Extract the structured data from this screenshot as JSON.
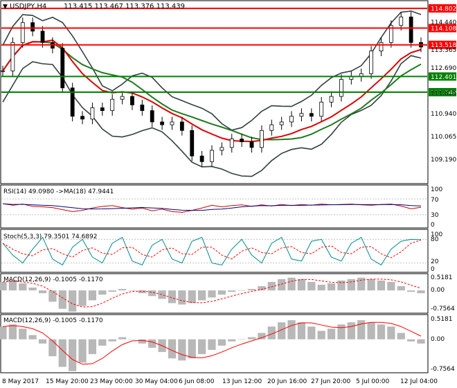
{
  "main_panel": {
    "header": {
      "symbol": "USDJPY,H4",
      "ohlc": "113.415 113.467 113.376 113.439"
    },
    "price_scale": [
      "114.440",
      "113.365",
      "112.690",
      "111.815",
      "110.940",
      "110.065",
      "109.190"
    ],
    "level_tags": [
      {
        "label": "114.802",
        "value": 114.802,
        "color": "#ff0000"
      },
      {
        "label": "114.108",
        "value": 114.108,
        "color": "#ff0000"
      },
      {
        "label": "113.518",
        "value": 113.518,
        "color": "#ff0000"
      },
      {
        "label": "112.401",
        "value": 112.401,
        "color": "#008000"
      },
      {
        "label": "111.849",
        "value": 111.849,
        "color": "#008000"
      }
    ],
    "close_prices": [
      112.6,
      113.6,
      114.3,
      114.0,
      113.6,
      113.4,
      112.0,
      111.0,
      110.9,
      111.3,
      111.2,
      111.6,
      111.7,
      111.4,
      111.2,
      110.8,
      110.7,
      110.8,
      110.5,
      109.6,
      109.4,
      109.8,
      109.9,
      110.2,
      110.1,
      109.9,
      110.5,
      110.7,
      110.8,
      111.0,
      111.1,
      111.0,
      111.5,
      111.7,
      112.3,
      112.4,
      112.5,
      113.3,
      113.6,
      114.2,
      114.5,
      113.6,
      113.44
    ],
    "colors": {
      "resistance": "#ff0000",
      "support": "#008000",
      "ma_fast": "#e00000",
      "ma_slow": "#1f7a1f",
      "bands": "#2f3f3f",
      "candle": "#000000"
    }
  },
  "rsi_panel": {
    "label": "RSI(14) 49.0980 ->MA(18) 47.9441",
    "scale": [
      "100",
      "70",
      "30",
      "0"
    ],
    "values": [
      58,
      54,
      57,
      51,
      50,
      48,
      43,
      38,
      41,
      47,
      51,
      53,
      48,
      44,
      47,
      40,
      44,
      38,
      36,
      41,
      47,
      54,
      50,
      53,
      55,
      51,
      55,
      52,
      56,
      53,
      56,
      54,
      57,
      55,
      56,
      57,
      55,
      54,
      56,
      57,
      52,
      45,
      49
    ]
  },
  "stoch_panel": {
    "label": "Stoch(5,3,3) 79.3501 74.6892",
    "scale": [
      "100",
      "80",
      "20",
      "0"
    ],
    "values": [
      70,
      40,
      20,
      55,
      85,
      30,
      15,
      60,
      80,
      35,
      20,
      70,
      85,
      25,
      15,
      65,
      80,
      30,
      20,
      75,
      85,
      20,
      15,
      55,
      80,
      40,
      20,
      70,
      85,
      30,
      25,
      75,
      80,
      35,
      25,
      70,
      85,
      30,
      15,
      55,
      75,
      80,
      79
    ]
  },
  "macd_panel": {
    "label": "MACD(12,26,9) -0.1005 -0.1170",
    "scale": [
      "0.5181",
      "0.00",
      "-0.7564"
    ],
    "histogram": [
      0.3,
      0.35,
      0.25,
      0.1,
      -0.1,
      -0.4,
      -0.65,
      -0.75,
      -0.55,
      -0.35,
      -0.15,
      -0.05,
      0.05,
      0.0,
      -0.1,
      -0.2,
      -0.3,
      -0.45,
      -0.5,
      -0.45,
      -0.35,
      -0.25,
      -0.15,
      -0.05,
      0.0,
      0.05,
      0.15,
      0.3,
      0.4,
      0.45,
      0.4,
      0.3,
      0.2,
      0.25,
      0.35,
      0.4,
      0.45,
      0.4,
      0.35,
      0.3,
      0.15,
      -0.05,
      -0.1
    ]
  },
  "macd2_panel": {
    "label": "MACD(12,26,9) -0.1005 -0.1170",
    "scale": [
      "0.5181",
      "0.00",
      "-0.7564"
    ]
  },
  "time_axis": [
    "8 May 2017",
    "15 May 20:00",
    "23 May 00:00",
    "30 May 04:00",
    "6 Jun 08:00",
    "13 Jun 12:00",
    "20 Jun 16:00",
    "27 Jun 20:00",
    "5 Jul 00:00",
    "12 Jul 04:00"
  ]
}
